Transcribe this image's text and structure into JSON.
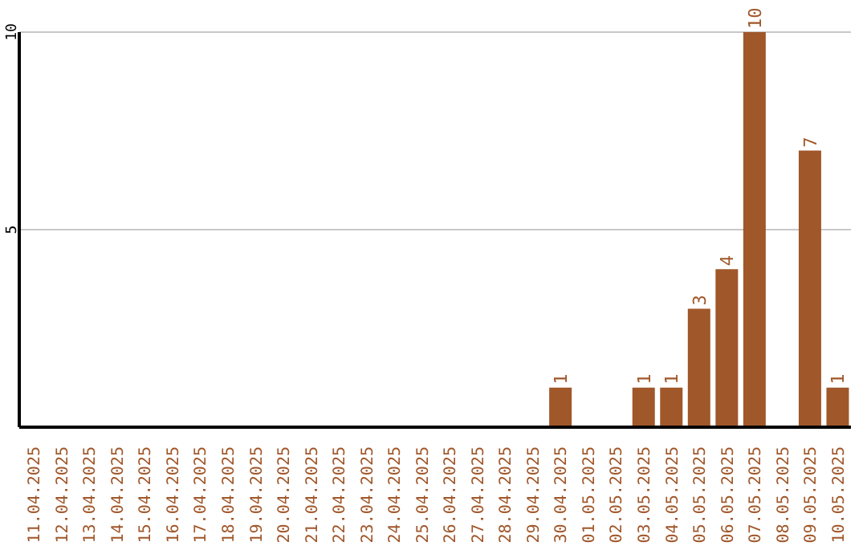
{
  "chart_data": {
    "type": "bar",
    "categories": [
      "11.04.2025",
      "12.04.2025",
      "13.04.2025",
      "14.04.2025",
      "15.04.2025",
      "16.04.2025",
      "17.04.2025",
      "18.04.2025",
      "19.04.2025",
      "20.04.2025",
      "21.04.2025",
      "22.04.2025",
      "23.04.2025",
      "24.04.2025",
      "25.04.2025",
      "26.04.2025",
      "27.04.2025",
      "28.04.2025",
      "29.04.2025",
      "30.04.2025",
      "01.05.2025",
      "02.05.2025",
      "03.05.2025",
      "04.05.2025",
      "05.05.2025",
      "06.05.2025",
      "07.05.2025",
      "08.05.2025",
      "09.05.2025",
      "10.05.2025"
    ],
    "values": [
      0,
      0,
      0,
      0,
      0,
      0,
      0,
      0,
      0,
      0,
      0,
      0,
      0,
      0,
      0,
      0,
      0,
      0,
      0,
      1,
      0,
      0,
      1,
      1,
      3,
      4,
      10,
      0,
      7,
      1
    ],
    "value_labels": [
      null,
      null,
      null,
      null,
      null,
      null,
      null,
      null,
      null,
      null,
      null,
      null,
      null,
      null,
      null,
      null,
      null,
      null,
      null,
      "1",
      null,
      null,
      "1",
      "1",
      "3",
      "4",
      "10",
      null,
      "7",
      "1"
    ],
    "color": "#a0572a",
    "ylim": [
      0,
      10
    ],
    "yticks": [
      5,
      10
    ],
    "grid": "y"
  }
}
